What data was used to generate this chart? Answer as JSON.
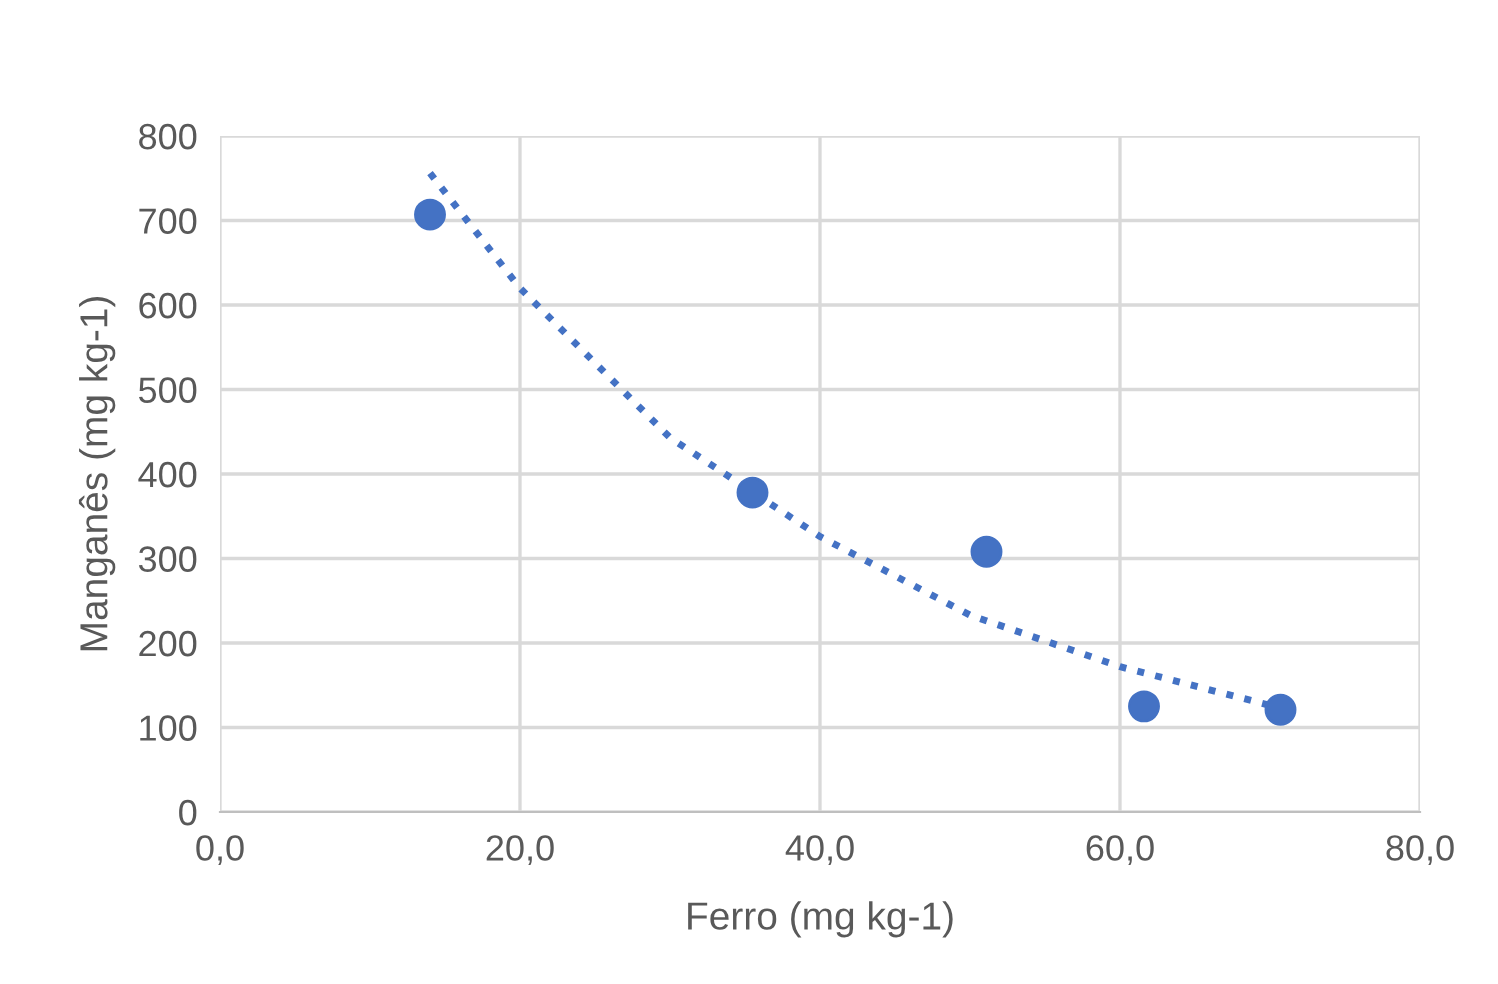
{
  "chart_data": {
    "type": "scatter",
    "xlabel": "Ferro (mg kg-1)",
    "ylabel": "Manganês (mg kg-1)",
    "xlim": [
      0,
      80
    ],
    "xticks": [
      {
        "value": 0,
        "label": "0,0"
      },
      {
        "value": 20,
        "label": "20,0"
      },
      {
        "value": 40,
        "label": "40,0"
      },
      {
        "value": 60,
        "label": "60,0"
      },
      {
        "value": 80,
        "label": "80,0"
      }
    ],
    "ylim": [
      0,
      800
    ],
    "yticks": [
      0,
      100,
      200,
      300,
      400,
      500,
      600,
      700,
      800
    ],
    "grid": true,
    "marker": "circle",
    "series": [
      {
        "color": "#4472c4",
        "x": [
          14.0,
          35.5,
          51.1,
          61.6,
          70.7
        ],
        "values": [
          707,
          378,
          308,
          125,
          121
        ]
      },
      {
        "type": "line",
        "color": "#4472c4",
        "line_style": "dotted",
        "marker": "none",
        "x": [
          14,
          20,
          30,
          40,
          50,
          60,
          70.7
        ],
        "values": [
          756,
          620,
          443,
          326,
          233,
          172,
          123
        ]
      }
    ]
  }
}
